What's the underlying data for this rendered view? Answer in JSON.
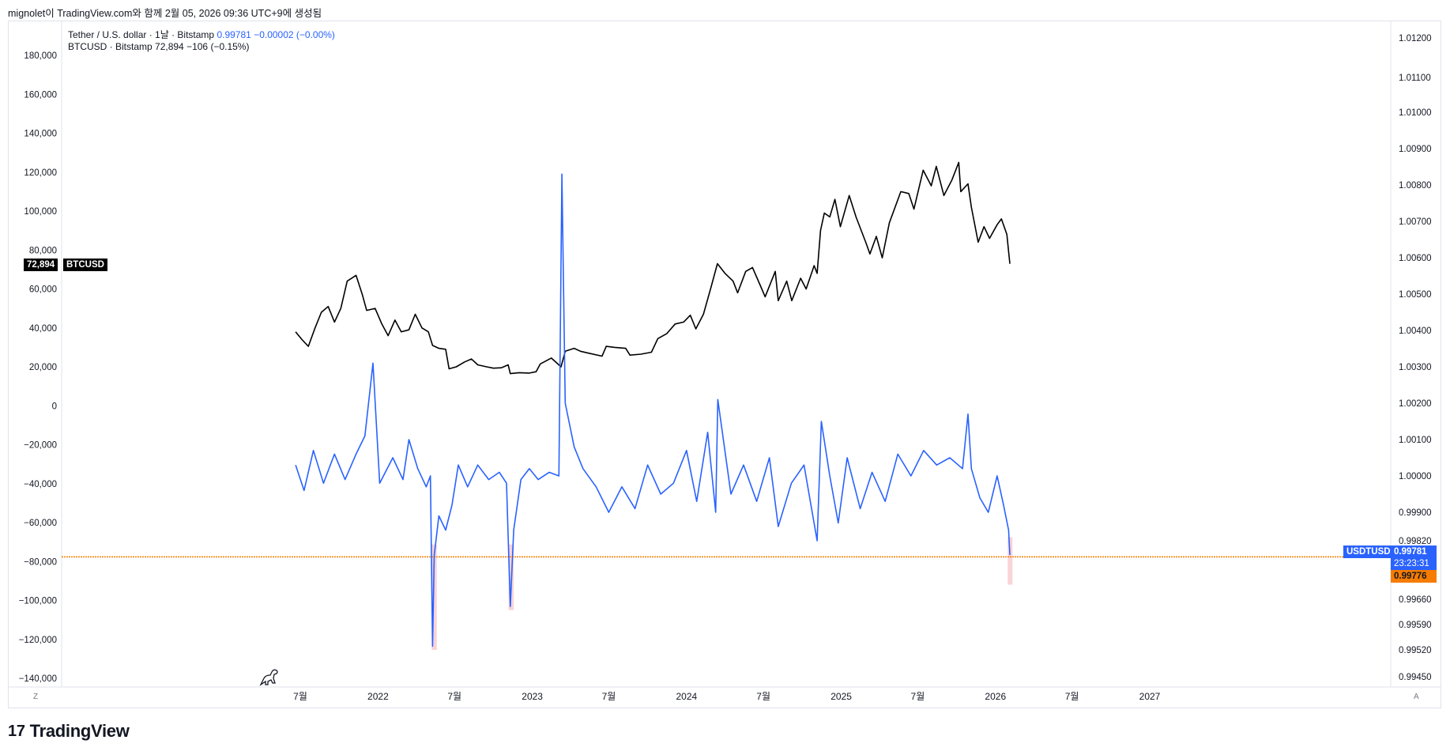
{
  "header": {
    "caption": "mignolet이 TradingView.com와 함께 2월 05, 2026 09:36 UTC+9에 생성됨"
  },
  "legend": {
    "line1_name": "Tether / U.S. dollar · 1날 · Bitstamp",
    "line1_value": "0.99781",
    "line1_change": "−0.00002 (−0.00%)",
    "line2_name": "BTCUSD · Bitstamp",
    "line2_value": "72,894",
    "line2_change": "−106 (−0.15%)"
  },
  "badges": {
    "btc_value": "72,894",
    "btc_symbol": "BTCUSD",
    "usdt_symbol": "USDTUSD",
    "usdt_value": "0.99781",
    "usdt_countdown": "23:23:31",
    "hline_value": "0.99776"
  },
  "corner_left": "Z",
  "corner_right": "A",
  "brand": {
    "logo": "17",
    "name": "TradingView"
  },
  "colors": {
    "btc_line": "#000000",
    "usdt_line": "#2962ff",
    "hline": "#f57c00",
    "highlight": "#f8c8cc",
    "grid_border": "#e0e3eb"
  },
  "chart_data": {
    "type": "line",
    "title": "",
    "x_tick_labels": [
      "7월",
      "2022",
      "7월",
      "2023",
      "7월",
      "2024",
      "7월",
      "2025",
      "7월",
      "2026",
      "7월",
      "2027"
    ],
    "x_ticks": [
      "2021-07-01",
      "2022-01-01",
      "2022-07-01",
      "2023-01-01",
      "2023-07-01",
      "2024-01-01",
      "2024-07-01",
      "2025-01-01",
      "2025-07-01",
      "2026-01-01",
      "2026-07-01",
      "2027-01-01"
    ],
    "left_axis": {
      "ticks": [
        180000,
        160000,
        140000,
        120000,
        100000,
        80000,
        60000,
        40000,
        20000,
        0,
        -20000,
        -40000,
        -60000,
        -80000,
        -100000,
        -120000,
        -140000
      ],
      "tick_labels": [
        "180,000",
        "160,000",
        "140,000",
        "120,000",
        "100,000",
        "80,000",
        "60,000",
        "40,000",
        "20,000",
        "0",
        "−20,000",
        "−40,000",
        "−60,000",
        "−80,000",
        "−100,000",
        "−120,000",
        "−140,000"
      ],
      "ylim": [
        -146000,
        190000
      ]
    },
    "right_axis": {
      "ticks": [
        1.012,
        1.011,
        1.01,
        1.009,
        1.008,
        1.007,
        1.006,
        1.005,
        1.004,
        1.003,
        1.002,
        1.001,
        1.0,
        0.999,
        0.9982,
        0.9966,
        0.9959,
        0.9952,
        0.9945
      ],
      "tick_labels": [
        "1.01200",
        "1.01100",
        "1.01000",
        "1.00900",
        "1.00800",
        "1.00700",
        "1.00600",
        "1.00500",
        "1.00400",
        "1.00300",
        "1.00200",
        "1.00100",
        "1.00000",
        "0.99900",
        "0.99820",
        "0.99660",
        "0.99590",
        "0.99520",
        "0.99450"
      ]
    },
    "horizontal_line": 0.99776,
    "highlight_ranges": [
      {
        "start": "2022-05-08",
        "end": "2022-05-20",
        "low": 0.9952,
        "high": 0.9981
      },
      {
        "start": "2022-11-06",
        "end": "2022-11-18",
        "low": 0.9963,
        "high": 0.9981
      },
      {
        "start": "2026-01-30",
        "end": "2026-02-09",
        "low": 0.997,
        "high": 0.9983
      }
    ],
    "series": [
      {
        "name": "BTCUSD",
        "axis": "left",
        "points": [
          [
            "2021-06-20",
            38000
          ],
          [
            "2021-07-05",
            34000
          ],
          [
            "2021-07-20",
            30500
          ],
          [
            "2021-08-05",
            40000
          ],
          [
            "2021-08-20",
            48000
          ],
          [
            "2021-09-05",
            51000
          ],
          [
            "2021-09-20",
            43000
          ],
          [
            "2021-10-05",
            50000
          ],
          [
            "2021-10-20",
            64000
          ],
          [
            "2021-11-10",
            67000
          ],
          [
            "2021-11-25",
            57000
          ],
          [
            "2021-12-05",
            49000
          ],
          [
            "2021-12-25",
            50000
          ],
          [
            "2022-01-10",
            42000
          ],
          [
            "2022-01-25",
            36000
          ],
          [
            "2022-02-10",
            44000
          ],
          [
            "2022-02-25",
            38000
          ],
          [
            "2022-03-15",
            39000
          ],
          [
            "2022-03-30",
            47000
          ],
          [
            "2022-04-15",
            40000
          ],
          [
            "2022-04-30",
            38000
          ],
          [
            "2022-05-10",
            31000
          ],
          [
            "2022-05-25",
            29500
          ],
          [
            "2022-06-10",
            29000
          ],
          [
            "2022-06-18",
            19000
          ],
          [
            "2022-07-05",
            20000
          ],
          [
            "2022-07-25",
            22500
          ],
          [
            "2022-08-10",
            24000
          ],
          [
            "2022-08-25",
            21000
          ],
          [
            "2022-09-15",
            20000
          ],
          [
            "2022-10-01",
            19300
          ],
          [
            "2022-10-20",
            19500
          ],
          [
            "2022-11-05",
            21000
          ],
          [
            "2022-11-10",
            16500
          ],
          [
            "2022-12-01",
            17000
          ],
          [
            "2022-12-25",
            16800
          ],
          [
            "2023-01-10",
            17500
          ],
          [
            "2023-01-20",
            21500
          ],
          [
            "2023-02-15",
            24500
          ],
          [
            "2023-03-10",
            20000
          ],
          [
            "2023-03-20",
            28000
          ],
          [
            "2023-04-10",
            29500
          ],
          [
            "2023-04-25",
            28000
          ],
          [
            "2023-05-15",
            27000
          ],
          [
            "2023-06-15",
            25500
          ],
          [
            "2023-06-25",
            30500
          ],
          [
            "2023-07-15",
            30000
          ],
          [
            "2023-08-10",
            29500
          ],
          [
            "2023-08-20",
            26000
          ],
          [
            "2023-09-15",
            26500
          ],
          [
            "2023-10-10",
            27500
          ],
          [
            "2023-10-25",
            34500
          ],
          [
            "2023-11-15",
            37000
          ],
          [
            "2023-12-05",
            42000
          ],
          [
            "2023-12-25",
            43000
          ],
          [
            "2024-01-10",
            46500
          ],
          [
            "2024-01-23",
            39500
          ],
          [
            "2024-02-10",
            47000
          ],
          [
            "2024-02-28",
            61000
          ],
          [
            "2024-03-14",
            73000
          ],
          [
            "2024-04-01",
            68000
          ],
          [
            "2024-04-20",
            64000
          ],
          [
            "2024-05-01",
            58000
          ],
          [
            "2024-05-20",
            69000
          ],
          [
            "2024-06-05",
            71000
          ],
          [
            "2024-06-25",
            61000
          ],
          [
            "2024-07-05",
            56000
          ],
          [
            "2024-07-29",
            69000
          ],
          [
            "2024-08-05",
            54000
          ],
          [
            "2024-08-25",
            64000
          ],
          [
            "2024-09-06",
            54000
          ],
          [
            "2024-09-27",
            65500
          ],
          [
            "2024-10-10",
            60000
          ],
          [
            "2024-10-29",
            72000
          ],
          [
            "2024-11-05",
            68000
          ],
          [
            "2024-11-13",
            90000
          ],
          [
            "2024-11-22",
            99000
          ],
          [
            "2024-12-05",
            97000
          ],
          [
            "2024-12-17",
            106000
          ],
          [
            "2024-12-30",
            92000
          ],
          [
            "2025-01-20",
            108000
          ],
          [
            "2025-02-05",
            97000
          ],
          [
            "2025-02-28",
            84000
          ],
          [
            "2025-03-10",
            78000
          ],
          [
            "2025-03-25",
            87000
          ],
          [
            "2025-04-08",
            76000
          ],
          [
            "2025-04-25",
            94000
          ],
          [
            "2025-05-22",
            110000
          ],
          [
            "2025-06-10",
            109000
          ],
          [
            "2025-06-22",
            101000
          ],
          [
            "2025-07-14",
            121000
          ],
          [
            "2025-08-02",
            113000
          ],
          [
            "2025-08-14",
            123000
          ],
          [
            "2025-09-01",
            108000
          ],
          [
            "2025-09-20",
            116000
          ],
          [
            "2025-10-06",
            125000
          ],
          [
            "2025-10-11",
            110000
          ],
          [
            "2025-10-28",
            114000
          ],
          [
            "2025-11-05",
            102000
          ],
          [
            "2025-11-21",
            84000
          ],
          [
            "2025-12-05",
            92000
          ],
          [
            "2025-12-18",
            86000
          ],
          [
            "2026-01-05",
            93000
          ],
          [
            "2026-01-15",
            96000
          ],
          [
            "2026-01-28",
            88000
          ],
          [
            "2026-02-04",
            72894
          ]
        ]
      },
      {
        "name": "USDTUSD",
        "axis": "right",
        "points": [
          [
            "2021-06-20",
            1.0003
          ],
          [
            "2021-07-10",
            0.9996
          ],
          [
            "2021-08-01",
            1.0007
          ],
          [
            "2021-08-25",
            0.9998
          ],
          [
            "2021-09-20",
            1.0006
          ],
          [
            "2021-10-15",
            0.9999
          ],
          [
            "2021-11-10",
            1.0006
          ],
          [
            "2021-12-01",
            1.0011
          ],
          [
            "2021-12-20",
            1.0031
          ],
          [
            "2022-01-05",
            0.9998
          ],
          [
            "2022-02-05",
            1.0005
          ],
          [
            "2022-03-01",
            0.9999
          ],
          [
            "2022-03-15",
            1.001
          ],
          [
            "2022-04-05",
            1.0002
          ],
          [
            "2022-04-25",
            0.9997
          ],
          [
            "2022-05-05",
            1.0
          ],
          [
            "2022-05-10",
            0.9953
          ],
          [
            "2022-05-14",
            0.9978
          ],
          [
            "2022-05-25",
            0.9989
          ],
          [
            "2022-06-10",
            0.9985
          ],
          [
            "2022-06-25",
            0.9992
          ],
          [
            "2022-07-10",
            1.0003
          ],
          [
            "2022-08-01",
            0.9997
          ],
          [
            "2022-08-25",
            1.0003
          ],
          [
            "2022-09-20",
            0.9999
          ],
          [
            "2022-10-15",
            1.0001
          ],
          [
            "2022-11-01",
            0.9998
          ],
          [
            "2022-11-10",
            0.9964
          ],
          [
            "2022-11-18",
            0.9985
          ],
          [
            "2022-12-05",
            0.9999
          ],
          [
            "2022-12-25",
            1.0002
          ],
          [
            "2023-01-15",
            0.9999
          ],
          [
            "2023-02-10",
            1.0001
          ],
          [
            "2023-03-05",
            1.0
          ],
          [
            "2023-03-12",
            1.0083
          ],
          [
            "2023-03-20",
            1.002
          ],
          [
            "2023-04-10",
            1.0008
          ],
          [
            "2023-05-01",
            1.0002
          ],
          [
            "2023-06-01",
            0.9997
          ],
          [
            "2023-07-01",
            0.999
          ],
          [
            "2023-08-01",
            0.9997
          ],
          [
            "2023-09-01",
            0.9991
          ],
          [
            "2023-10-01",
            1.0003
          ],
          [
            "2023-11-01",
            0.9995
          ],
          [
            "2023-12-01",
            0.9998
          ],
          [
            "2024-01-01",
            1.0007
          ],
          [
            "2024-01-25",
            0.9993
          ],
          [
            "2024-02-20",
            1.0012
          ],
          [
            "2024-03-10",
            0.999
          ],
          [
            "2024-03-15",
            1.0021
          ],
          [
            "2024-04-15",
            0.9995
          ],
          [
            "2024-05-15",
            1.0003
          ],
          [
            "2024-06-15",
            0.9993
          ],
          [
            "2024-07-15",
            1.0005
          ],
          [
            "2024-08-05",
            0.9986
          ],
          [
            "2024-09-05",
            0.9998
          ],
          [
            "2024-10-05",
            1.0003
          ],
          [
            "2024-11-05",
            0.9982
          ],
          [
            "2024-11-15",
            1.0015
          ],
          [
            "2024-12-05",
            1.0
          ],
          [
            "2024-12-25",
            0.9987
          ],
          [
            "2025-01-15",
            1.0005
          ],
          [
            "2025-02-15",
            0.9991
          ],
          [
            "2025-03-15",
            1.0001
          ],
          [
            "2025-04-15",
            0.9993
          ],
          [
            "2025-05-15",
            1.0006
          ],
          [
            "2025-06-15",
            1.0
          ],
          [
            "2025-07-15",
            1.0007
          ],
          [
            "2025-08-15",
            1.0003
          ],
          [
            "2025-09-15",
            1.0005
          ],
          [
            "2025-10-15",
            1.0002
          ],
          [
            "2025-10-28",
            1.0017
          ],
          [
            "2025-11-05",
            1.0002
          ],
          [
            "2025-11-25",
            0.9994
          ],
          [
            "2025-12-15",
            0.999
          ],
          [
            "2026-01-05",
            1.0
          ],
          [
            "2026-01-20",
            0.9992
          ],
          [
            "2026-02-01",
            0.9985
          ],
          [
            "2026-02-04",
            0.99781
          ]
        ]
      }
    ]
  }
}
